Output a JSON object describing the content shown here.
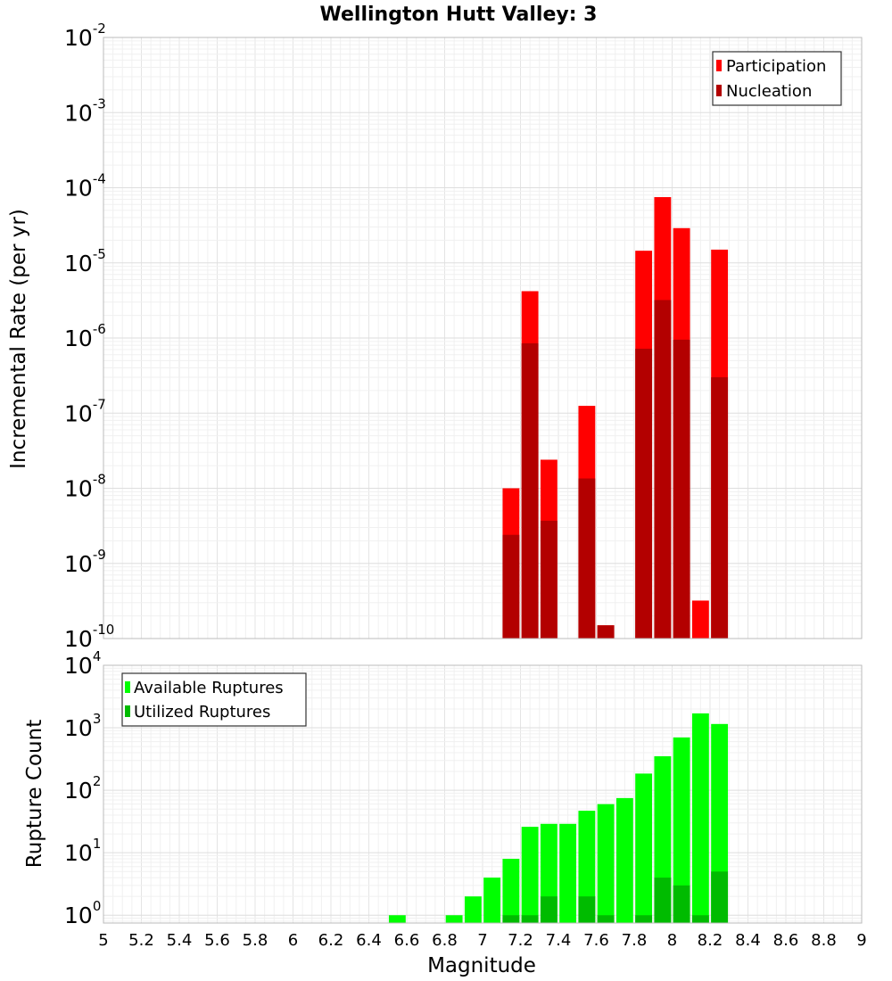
{
  "chart_data": [
    {
      "type": "bar",
      "title": "Wellington Hutt Valley: 3",
      "ylabel": "Incremental Rate (per yr)",
      "xlabel": "Magnitude",
      "yscale": "log",
      "ylim": [
        1e-10,
        0.01
      ],
      "xlim": [
        5,
        9
      ],
      "y_tick_labels": [
        "10-10",
        "10-9",
        "10-8",
        "10-7",
        "10-6",
        "10-5",
        "10-4",
        "10-3",
        "10-2"
      ],
      "bar_width": 0.1,
      "grid": true,
      "legend_position": "top-right",
      "series": [
        {
          "name": "Participation",
          "color": "#ff0000",
          "x": [
            7.15,
            7.25,
            7.35,
            7.55,
            7.65,
            7.85,
            7.95,
            8.05,
            8.15,
            8.25
          ],
          "values": [
            1e-08,
            4.2e-06,
            2.4e-08,
            1.25e-07,
            1.5e-10,
            1.45e-05,
            7.5e-05,
            2.9e-05,
            3.2e-10,
            1.5e-05
          ]
        },
        {
          "name": "Nucleation",
          "color": "#b30000",
          "x": [
            7.15,
            7.25,
            7.35,
            7.55,
            7.65,
            7.85,
            7.95,
            8.05,
            8.25
          ],
          "values": [
            2.4e-09,
            8.5e-07,
            3.7e-09,
            1.35e-08,
            1.5e-10,
            7.2e-07,
            3.2e-06,
            9.5e-07,
            3e-07
          ]
        }
      ]
    },
    {
      "type": "bar",
      "ylabel": "Rupture Count",
      "xlabel": "Magnitude",
      "yscale": "log",
      "ylim": [
        0.75,
        10000
      ],
      "xlim": [
        5,
        9
      ],
      "x_tick_labels": [
        "5",
        "5.2",
        "5.4",
        "5.6",
        "5.8",
        "6",
        "6.2",
        "6.4",
        "6.6",
        "6.8",
        "7",
        "7.2",
        "7.4",
        "7.6",
        "7.8",
        "8",
        "8.2",
        "8.4",
        "8.6",
        "8.8",
        "9"
      ],
      "y_tick_labels": [
        "100",
        "101",
        "102",
        "103",
        "104"
      ],
      "bar_width": 0.1,
      "grid": true,
      "legend_position": "top-left",
      "series": [
        {
          "name": "Available Ruptures",
          "color": "#00ff00",
          "x": [
            6.55,
            6.85,
            6.95,
            7.05,
            7.15,
            7.25,
            7.35,
            7.45,
            7.55,
            7.65,
            7.75,
            7.85,
            7.95,
            8.05,
            8.15,
            8.25
          ],
          "values": [
            1,
            1,
            2,
            4,
            8,
            26,
            29,
            29,
            47,
            60,
            75,
            185,
            350,
            700,
            1700,
            1150
          ]
        },
        {
          "name": "Utilized Ruptures",
          "color": "#00bb00",
          "x": [
            7.15,
            7.25,
            7.35,
            7.55,
            7.65,
            7.85,
            7.95,
            8.05,
            8.15,
            8.25
          ],
          "values": [
            1,
            1,
            2,
            2,
            1,
            1,
            4,
            3,
            1,
            5
          ]
        }
      ]
    }
  ]
}
